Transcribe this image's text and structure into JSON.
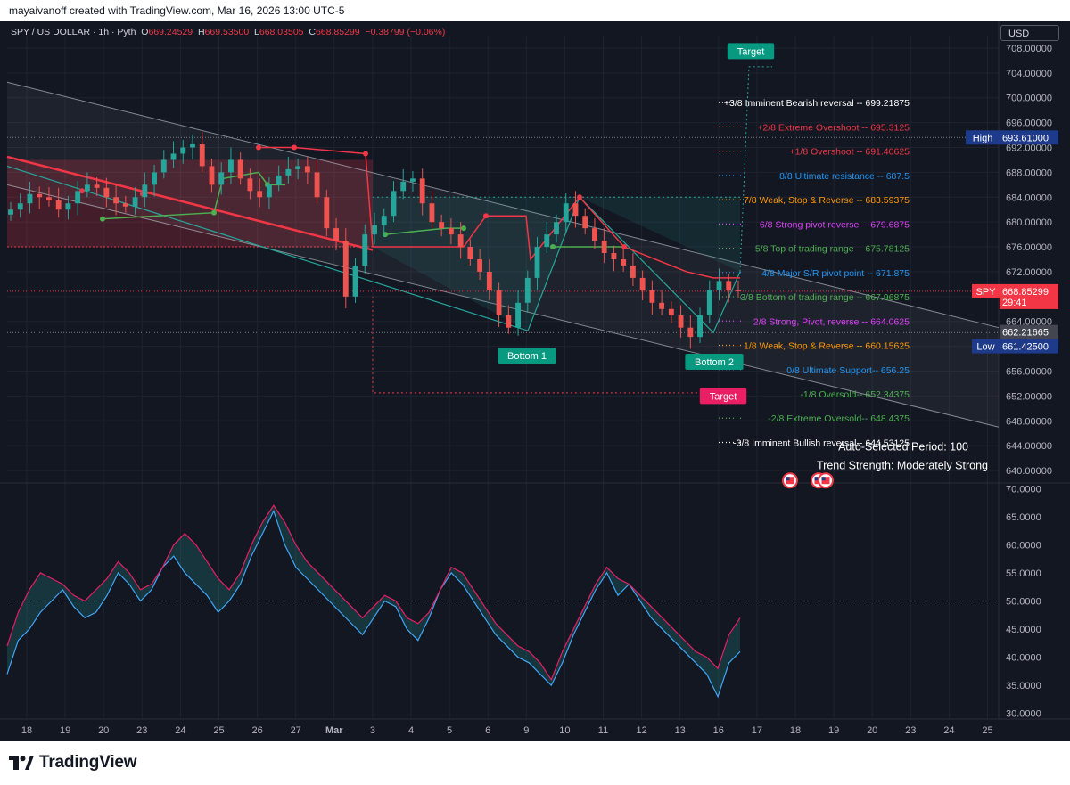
{
  "header": {
    "credit": "mayaivanoff created with TradingView.com, Mar 16, 2026 13:00 UTC-5"
  },
  "legend": {
    "symbol": "SPY / US DOLLAR · 1h · Pyth",
    "open_label": "O",
    "open": "669.24529",
    "high_label": "H",
    "high": "669.53500",
    "low_label": "L",
    "low": "668.03505",
    "close_label": "C",
    "close": "668.85299",
    "change": "−0.38799 (−0.06%)"
  },
  "currency": "USD",
  "price_axis": {
    "ticks": [
      "708.00000",
      "704.00000",
      "700.00000",
      "696.00000",
      "692.00000",
      "688.00000",
      "684.00000",
      "680.00000",
      "676.00000",
      "672.00000",
      "668.00000",
      "664.00000",
      "660.00000",
      "656.00000",
      "652.00000",
      "648.00000",
      "644.00000",
      "640.00000"
    ],
    "tags": [
      {
        "label": "High",
        "value": "693.61000",
        "color": "#1e3a8a"
      },
      {
        "label": "SPY",
        "value": "668.85299",
        "sub": "29:41",
        "color": "#f23645"
      },
      {
        "label": "",
        "value": "662.21665",
        "color": "#434651"
      },
      {
        "label": "Low",
        "value": "661.42500",
        "color": "#1e3a8a"
      }
    ]
  },
  "osc_axis": {
    "ticks": [
      "70.0000",
      "65.0000",
      "60.0000",
      "55.0000",
      "50.0000",
      "45.0000",
      "40.0000",
      "35.0000",
      "30.0000"
    ]
  },
  "time_axis": {
    "labels": [
      "18",
      "19",
      "20",
      "23",
      "24",
      "25",
      "26",
      "27",
      "Mar",
      "3",
      "4",
      "5",
      "6",
      "9",
      "10",
      "11",
      "12",
      "13",
      "16",
      "17",
      "18",
      "19",
      "20",
      "23",
      "24",
      "25"
    ]
  },
  "murrey_levels": [
    {
      "text": "+3/8 Imminent Bearish reversal --  699.21875",
      "price": 699.21875,
      "color": "#ffffff"
    },
    {
      "text": "+2/8 Extreme Overshoot --  695.3125",
      "price": 695.3125,
      "color": "#f23645"
    },
    {
      "text": "+1/8 Overshoot --  691.40625",
      "price": 691.40625,
      "color": "#f23645"
    },
    {
      "text": "8/8 Ultimate resistance --  687.5",
      "price": 687.5,
      "color": "#2196f3"
    },
    {
      "text": "7/8 Weak, Stop & Reverse --  683.59375",
      "price": 683.59375,
      "color": "#ff9800"
    },
    {
      "text": "6/8 Strong pivot reverse --  679.6875",
      "price": 679.6875,
      "color": "#e040fb"
    },
    {
      "text": "5/8 Top of trading range --  675.78125",
      "price": 675.78125,
      "color": "#4caf50"
    },
    {
      "text": "4/8 Major S/R pivot point --  671.875",
      "price": 671.875,
      "color": "#2196f3"
    },
    {
      "text": "3/8 Bottom of trading range --  667.96875",
      "price": 667.96875,
      "color": "#4caf50"
    },
    {
      "text": "2/8 Strong, Pivot, reverse --  664.0625",
      "price": 664.0625,
      "color": "#e040fb"
    },
    {
      "text": "1/8 Weak, Stop & Reverse --  660.15625",
      "price": 660.15625,
      "color": "#ff9800"
    },
    {
      "text": "0/8 Ultimate Support--  656.25",
      "price": 656.25,
      "color": "#2196f3"
    },
    {
      "text": "-1/8 Oversold--  652.34375",
      "price": 652.34375,
      "color": "#4caf50"
    },
    {
      "text": "-2/8 Extreme Oversold--  648.4375",
      "price": 648.4375,
      "color": "#4caf50"
    },
    {
      "text": "-3/8 Imminent Bullish reversal--  644.53125",
      "price": 644.53125,
      "color": "#ffffff"
    }
  ],
  "labels": {
    "target_top": "Target",
    "target_bottom": "Target",
    "bottom1": "Bottom 1",
    "bottom2": "Bottom 2",
    "period": "Auto-Selected Period: 100",
    "trend": "Trend Strength: Moderately Strong"
  },
  "footer": {
    "brand": "TradingView"
  },
  "colors": {
    "bull": "#26a69a",
    "bear": "#ef5350",
    "bg": "#131722",
    "grid": "#1f2330"
  },
  "chart_data": [
    {
      "type": "candlestick",
      "title": "SPY / US DOLLAR · 1h · Pyth",
      "y_range": [
        638,
        710
      ],
      "x_labels": [
        "18",
        "19",
        "20",
        "23",
        "24",
        "25",
        "26",
        "27",
        "Mar",
        "3",
        "4",
        "5",
        "6",
        "9",
        "10",
        "11",
        "12",
        "13",
        "16",
        "17",
        "18",
        "19",
        "20",
        "23",
        "24",
        "25"
      ],
      "close_path": [
        682.0,
        683.0,
        684.5,
        684.0,
        683.5,
        682.0,
        683.0,
        685.0,
        686.0,
        685.5,
        684.0,
        683.0,
        682.5,
        684.0,
        686.0,
        688.0,
        690.0,
        691.0,
        692.0,
        692.5,
        689.0,
        686.0,
        688.0,
        690.0,
        687.0,
        685.0,
        684.0,
        686.0,
        687.5,
        688.5,
        689.0,
        688.0,
        684.0,
        679.0,
        677.0,
        668.0,
        673.0,
        678.0,
        679.5,
        681.0,
        685.0,
        686.5,
        687.0,
        683.0,
        680.0,
        679.0,
        678.0,
        676.0,
        674.0,
        672.0,
        669.0,
        665.0,
        663.0,
        667.0,
        671.0,
        676.0,
        678.0,
        680.0,
        683.0,
        681.0,
        679.0,
        677.0,
        675.0,
        674.0,
        673.0,
        671.0,
        669.0,
        667.0,
        666.0,
        665.0,
        663.0,
        661.5,
        665.0,
        669.0,
        670.5,
        669.0,
        668.85299
      ],
      "last": 668.85299,
      "high": 693.61,
      "low": 661.425,
      "regression_channel": {
        "upper": [
          [
            0,
            702.5
          ],
          [
            1,
            663.0
          ]
        ],
        "lower": [
          [
            0,
            686.0
          ],
          [
            1,
            647.0
          ]
        ]
      }
    },
    {
      "type": "line",
      "title": "",
      "y_range": [
        29,
        71
      ],
      "series": [
        {
          "values": [
            37,
            43,
            45,
            48,
            50,
            52,
            49,
            47,
            48,
            51,
            55,
            53,
            50,
            52,
            56,
            58,
            55,
            53,
            51,
            48,
            50,
            53,
            58,
            62,
            66,
            60,
            56,
            54,
            52,
            50,
            48,
            46,
            44,
            47,
            50,
            49,
            45,
            43,
            47,
            52,
            55,
            53,
            50,
            47,
            44,
            42,
            40,
            39,
            37,
            35,
            39,
            44,
            48,
            52,
            55,
            51,
            53,
            50,
            47,
            45,
            43,
            41,
            39,
            37,
            33,
            39,
            41
          ]
        },
        {
          "values": [
            42,
            48,
            52,
            55,
            54,
            53,
            51,
            50,
            52,
            54,
            57,
            55,
            52,
            53,
            56,
            60,
            62,
            60,
            57,
            54,
            52,
            55,
            60,
            64,
            67,
            64,
            60,
            57,
            55,
            53,
            51,
            49,
            47,
            49,
            51,
            50,
            47,
            46,
            48,
            52,
            56,
            55,
            52,
            49,
            46,
            44,
            42,
            41,
            39,
            36,
            41,
            45,
            49,
            53,
            56,
            54,
            53,
            51,
            49,
            47,
            45,
            43,
            41,
            40,
            38,
            44,
            47
          ]
        }
      ],
      "reference_line": 50
    }
  ]
}
